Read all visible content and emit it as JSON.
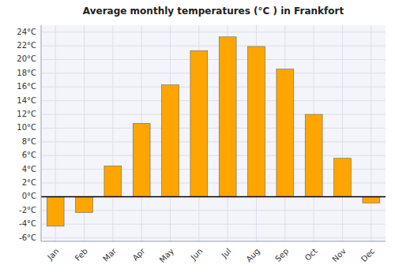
{
  "chart_data": {
    "type": "bar",
    "title": "Average monthly temperatures (°C ) in Frankfort",
    "categories": [
      "Jan",
      "Feb",
      "Mar",
      "Apr",
      "May",
      "Jun",
      "Jul",
      "Aug",
      "Sep",
      "Oct",
      "Nov",
      "Dec"
    ],
    "values": [
      -4.3,
      -2.3,
      4.5,
      10.7,
      16.3,
      21.3,
      23.3,
      21.9,
      18.6,
      12.0,
      5.6,
      -0.9
    ],
    "color": "#FFA500",
    "ylim": [
      -6.5,
      25
    ],
    "yticks": [
      {
        "value": -6,
        "label": "-6°C"
      },
      {
        "value": -4,
        "label": "-4°C"
      },
      {
        "value": -2,
        "label": "-2°C"
      },
      {
        "value": 0,
        "label": "0°C"
      },
      {
        "value": 2,
        "label": "2°C"
      },
      {
        "value": 4,
        "label": "4°C"
      },
      {
        "value": 6,
        "label": "6°C"
      },
      {
        "value": 8,
        "label": "8°C"
      },
      {
        "value": 10,
        "label": "10°C"
      },
      {
        "value": 12,
        "label": "12°C"
      },
      {
        "value": 14,
        "label": "14°C"
      },
      {
        "value": 16,
        "label": "16°C"
      },
      {
        "value": 18,
        "label": "18°C"
      },
      {
        "value": 20,
        "label": "20°C"
      },
      {
        "value": 22,
        "label": "22°C"
      },
      {
        "value": 24,
        "label": "24°C"
      }
    ],
    "grid": true
  }
}
